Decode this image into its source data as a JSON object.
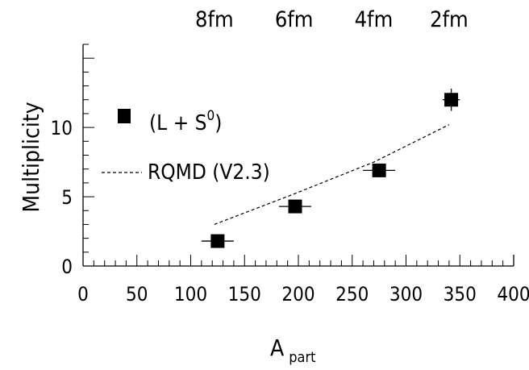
{
  "chart_data": {
    "type": "scatter",
    "xlabel": "A",
    "xlabel_subscript": "part",
    "ylabel": "Multiplicity",
    "xlim": [
      0,
      400
    ],
    "ylim": [
      0,
      16
    ],
    "x_ticks": [
      "0",
      "50",
      "100",
      "150",
      "200",
      "250",
      "300",
      "350",
      "400"
    ],
    "y_ticks": [
      "0",
      "5",
      "10"
    ],
    "top_axis_labels": [
      {
        "label": "8fm",
        "x": 122
      },
      {
        "label": "6fm",
        "x": 196
      },
      {
        "label": "4fm",
        "x": 270
      },
      {
        "label": "2fm",
        "x": 340
      }
    ],
    "grid": false,
    "legend_position": "upper-left",
    "series": [
      {
        "name": "(L + S⁰)",
        "legend": {
          "main": "(L  + S",
          "sup": "0",
          "close": ")"
        },
        "marker": "filled-square",
        "points": [
          {
            "x": 125,
            "y": 1.8,
            "xerr": 15,
            "yerr": 0.3
          },
          {
            "x": 197,
            "y": 4.3,
            "xerr": 15,
            "yerr": 0.4
          },
          {
            "x": 275,
            "y": 6.9,
            "xerr": 15,
            "yerr": 0.5
          },
          {
            "x": 342,
            "y": 12.0,
            "xerr": 8,
            "yerr": 0.8
          }
        ]
      },
      {
        "name": "RQMD (V2.3)",
        "style": "dashed",
        "points": [
          {
            "x": 122,
            "y": 3.0
          },
          {
            "x": 196,
            "y": 5.2
          },
          {
            "x": 270,
            "y": 7.5
          },
          {
            "x": 340,
            "y": 10.2
          }
        ]
      }
    ]
  }
}
